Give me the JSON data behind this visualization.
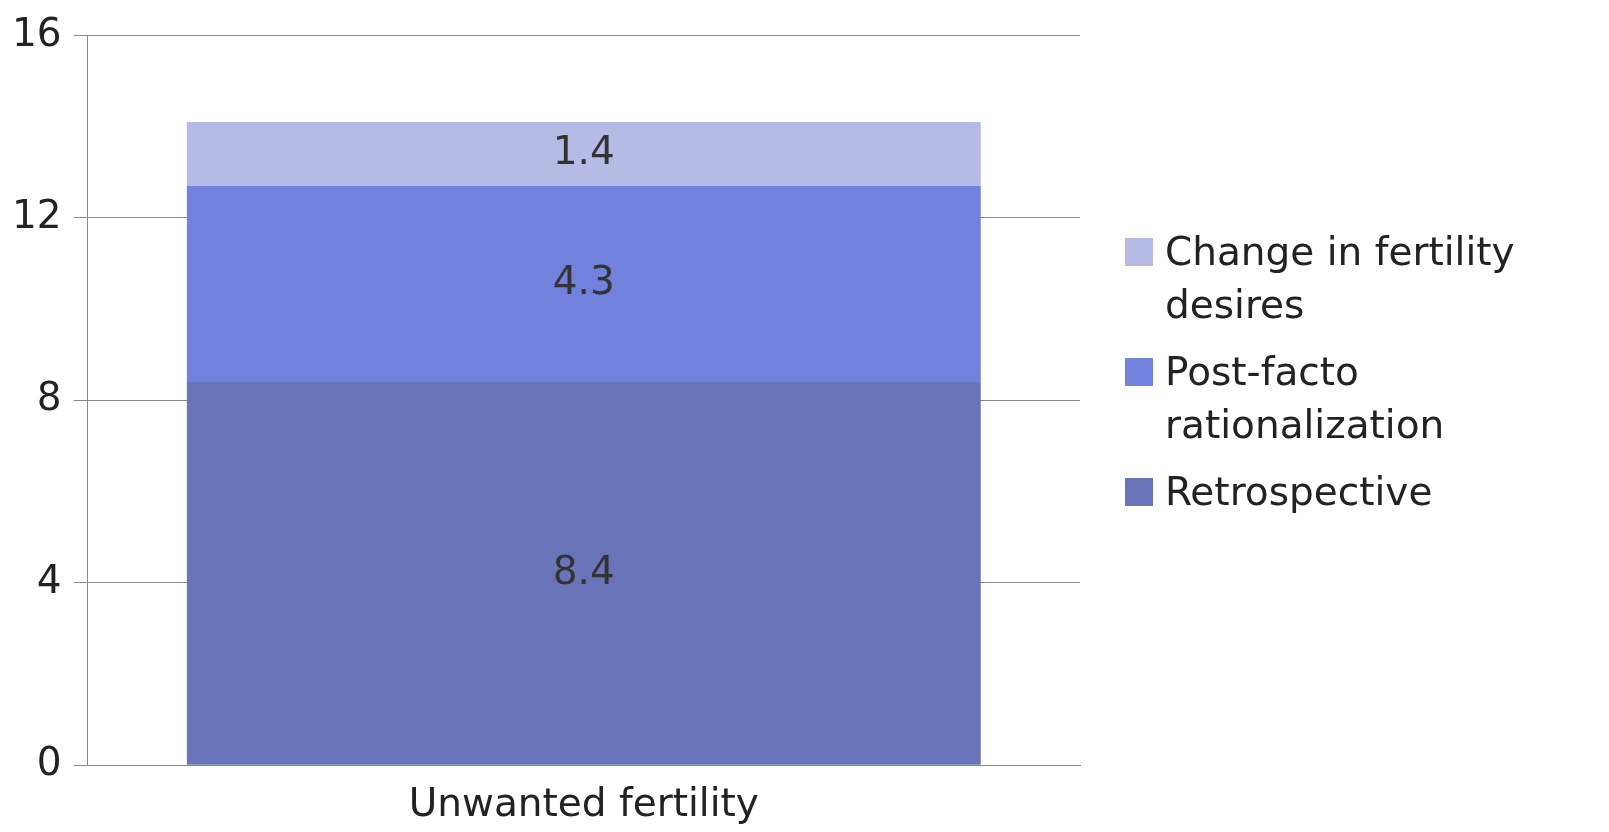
{
  "chart_data": {
    "type": "bar",
    "stacked": true,
    "categories": [
      "Unwanted fertility"
    ],
    "series": [
      {
        "name": "Retrospective",
        "color": "#6a74b8",
        "values": [
          8.4
        ]
      },
      {
        "name": "Post-facto rationalization",
        "color": "#7282dc",
        "values": [
          4.3
        ]
      },
      {
        "name": "Change in fertility desires",
        "color": "#b6bbe6",
        "values": [
          1.4
        ]
      }
    ],
    "ylim": [
      0,
      16
    ],
    "yticks": [
      0,
      4,
      8,
      12,
      16
    ],
    "grid": "y",
    "legend": "right",
    "data_labels": true
  }
}
